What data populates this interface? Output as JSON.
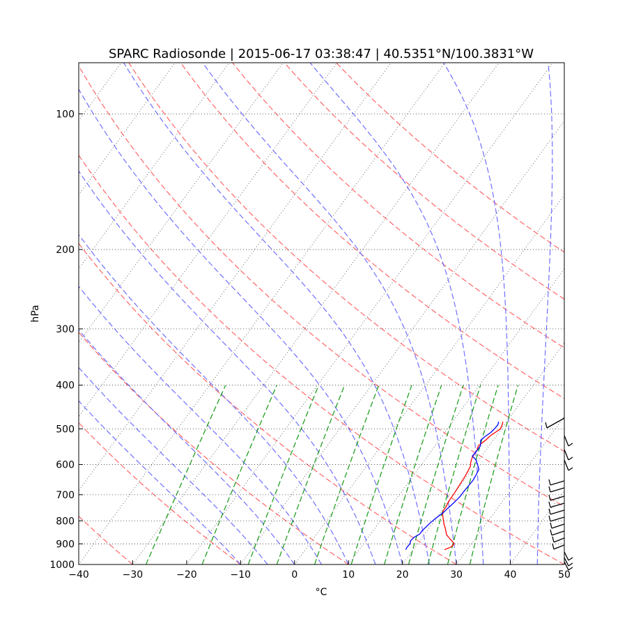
{
  "chart_data": {
    "type": "line",
    "title": "SPARC Radiosonde | 2015-06-17 03:38:47 | 40.5351°N/100.3831°W",
    "xlabel": "°C",
    "ylabel": "hPa",
    "x_ticks": [
      -40,
      -30,
      -20,
      -10,
      0,
      10,
      20,
      30,
      40,
      50
    ],
    "y_ticks": [
      100,
      200,
      300,
      400,
      500,
      600,
      700,
      800,
      900,
      1000
    ],
    "xlim": [
      -40,
      50
    ],
    "ylim": [
      1000,
      77
    ],
    "y_scale": "log",
    "grid": true,
    "colors": {
      "temperature": "#ff0000",
      "dewpoint": "#0000ff",
      "dry_adiabats": "#ff6666",
      "moist_adiabats": "#6f6fff",
      "mixing_ratio": "#119911",
      "isotherms": "#444444",
      "wind_barbs": "#000000"
    },
    "series": [
      {
        "p": [
          927,
          915,
          900,
          890,
          875,
          860,
          845,
          830,
          815,
          800,
          790,
          775,
          760,
          745,
          730,
          715,
          700,
          680,
          660,
          640,
          620,
          605,
          595,
          585,
          575,
          560,
          545,
          530,
          520,
          510,
          500,
          490,
          482
        ],
        "values": [
          25.8,
          26.6,
          26.8,
          26.2,
          25.2,
          24.2,
          23.6,
          23.0,
          22.3,
          21.7,
          21.3,
          20.7,
          20.3,
          20.3,
          20.1,
          20.0,
          20.0,
          19.9,
          19.8,
          19.7,
          19.5,
          19.3,
          18.9,
          18.6,
          18.4,
          18.4,
          18.0,
          18.6,
          18.8,
          19.3,
          19.8,
          19.6,
          19.3
        ]
      },
      {
        "p": [
          927,
          915,
          900,
          885,
          870,
          855,
          840,
          825,
          810,
          795,
          780,
          765,
          750,
          735,
          720,
          705,
          690,
          670,
          650,
          630,
          615,
          600,
          585,
          575,
          560,
          545,
          530,
          520,
          510,
          500,
          490,
          482
        ],
        "values": [
          18.6,
          18.5,
          18.6,
          18.3,
          18.5,
          19.1,
          19.1,
          19.3,
          19.5,
          19.8,
          20.2,
          20.6,
          20.8,
          21.1,
          21.3,
          21.5,
          21.5,
          21.6,
          21.7,
          21.5,
          21.3,
          20.4,
          19.4,
          18.3,
          18.4,
          18.4,
          17.7,
          18.0,
          18.5,
          18.7,
          18.8,
          18.5
        ]
      }
    ]
  }
}
